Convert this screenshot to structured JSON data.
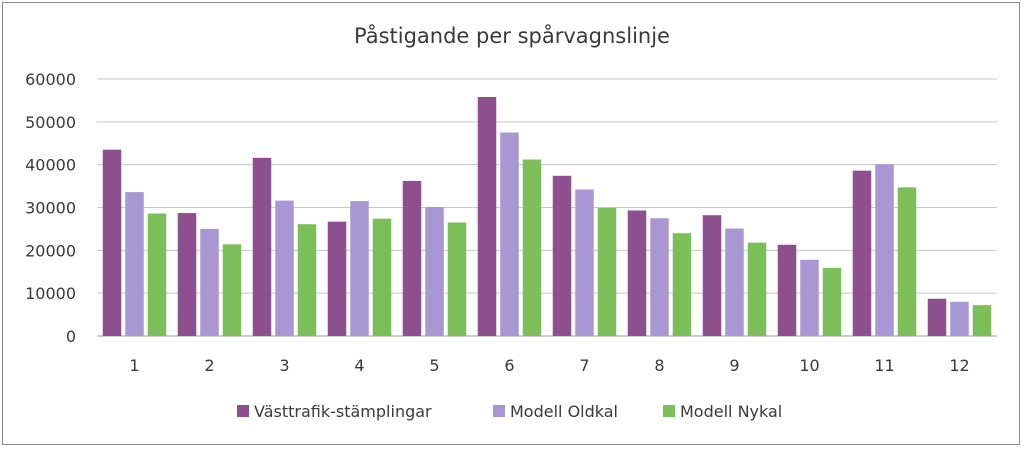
{
  "chart_data": {
    "type": "bar",
    "title": "Påstigande per spårvagnslinje",
    "xlabel": "",
    "ylabel": "",
    "categories": [
      "1",
      "2",
      "3",
      "4",
      "5",
      "6",
      "7",
      "8",
      "9",
      "10",
      "11",
      "12"
    ],
    "ylim": [
      0,
      60000
    ],
    "yticks": [
      "0",
      "10000",
      "20000",
      "30000",
      "40000",
      "50000",
      "60000"
    ],
    "grid": true,
    "legend_position": "bottom",
    "series": [
      {
        "name": "Västtrafik-stämplingar",
        "color": "#8e4f8f",
        "values": [
          43500,
          28700,
          41600,
          26700,
          36200,
          55800,
          37400,
          29300,
          28200,
          21300,
          38600,
          8700
        ]
      },
      {
        "name": "Modell Oldkal",
        "color": "#a897d3",
        "values": [
          33600,
          25000,
          31600,
          31500,
          30100,
          47500,
          34200,
          27500,
          25100,
          17800,
          40100,
          8000
        ]
      },
      {
        "name": "Modell Nykal",
        "color": "#7cbf5a",
        "values": [
          28600,
          21400,
          26100,
          27400,
          26500,
          41200,
          29900,
          24000,
          21800,
          15900,
          34700,
          7200
        ]
      }
    ]
  }
}
